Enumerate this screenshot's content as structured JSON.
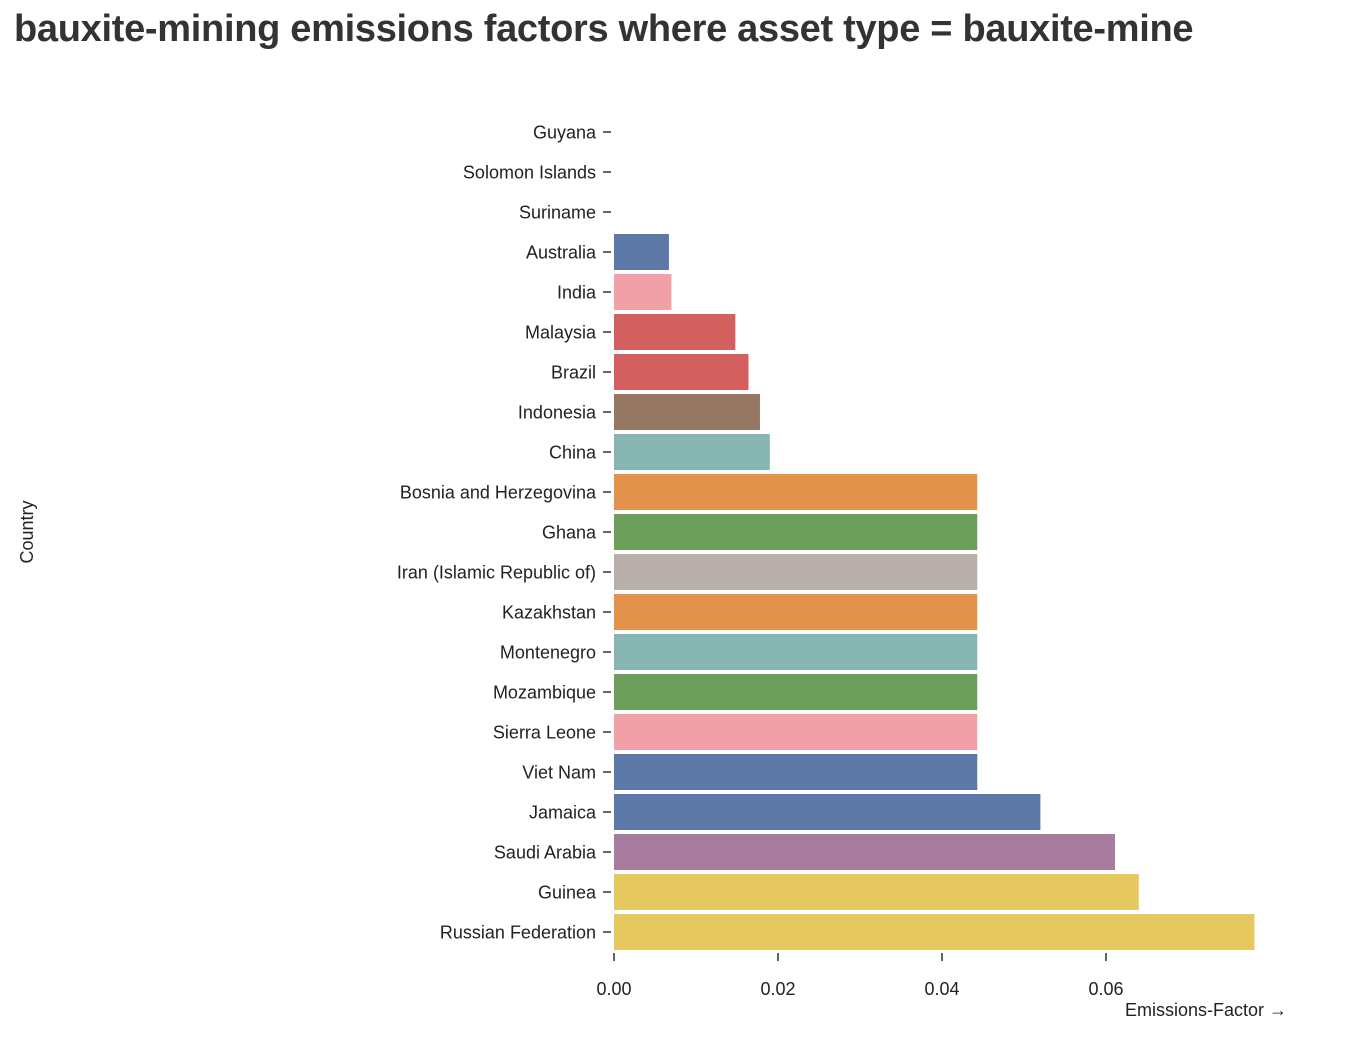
{
  "chart_data": {
    "type": "bar",
    "orientation": "horizontal",
    "title": "bauxite-mining emissions factors where asset type = bauxite-mine",
    "xlabel": "Emissions-Factor →",
    "ylabel": "Country",
    "xlim": [
      0,
      0.078
    ],
    "x_ticks": [
      "0.00",
      "0.02",
      "0.04",
      "0.06"
    ],
    "grid": false,
    "legend": "none",
    "categories": [
      "Guyana",
      "Solomon Islands",
      "Suriname",
      "Australia",
      "India",
      "Malaysia",
      "Brazil",
      "Indonesia",
      "China",
      "Bosnia and Herzegovina",
      "Ghana",
      "Iran (Islamic Republic of)",
      "Kazakhstan",
      "Montenegro",
      "Mozambique",
      "Sierra Leone",
      "Viet Nam",
      "Jamaica",
      "Saudi Arabia",
      "Guinea",
      "Russian Federation"
    ],
    "values": [
      0,
      0,
      0,
      0.0067,
      0.007,
      0.0148,
      0.0164,
      0.0178,
      0.019,
      0.0443,
      0.0443,
      0.0443,
      0.0443,
      0.0443,
      0.0443,
      0.0443,
      0.0443,
      0.052,
      0.0611,
      0.064,
      0.0781
    ],
    "colors": [
      "#5b78a6",
      "#5b78a6",
      "#5b78a6",
      "#5b78a6",
      "#f0a0a6",
      "#d35f5f",
      "#d35f5f",
      "#957762",
      "#87b5b2",
      "#e2924a",
      "#6b9e58",
      "#b8afab",
      "#e2924a",
      "#87b5b2",
      "#6b9e58",
      "#f0a0a6",
      "#5b78a6",
      "#5b78a6",
      "#a77c9e",
      "#e5c95f",
      "#e5c95f"
    ]
  }
}
